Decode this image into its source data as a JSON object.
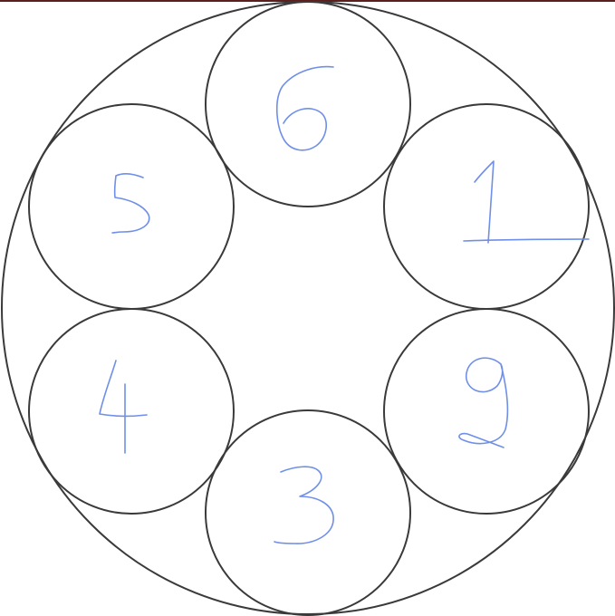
{
  "diagram": {
    "title": "",
    "ink_color": "#6f8fe8",
    "line_color": "#3a3a3a",
    "top_border_color": "#5a1f1f",
    "circles": [
      {
        "id": "top",
        "label": "6"
      },
      {
        "id": "upper-right",
        "label": "1"
      },
      {
        "id": "lower-right",
        "label": "9"
      },
      {
        "id": "bottom",
        "label": "3"
      },
      {
        "id": "lower-left",
        "label": "4"
      },
      {
        "id": "upper-left",
        "label": "5"
      }
    ]
  }
}
